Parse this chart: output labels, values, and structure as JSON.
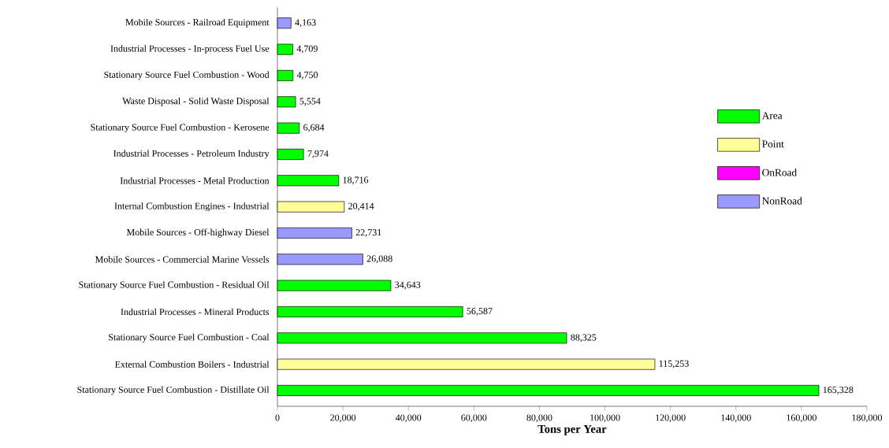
{
  "chart_data": {
    "type": "bar",
    "orientation": "horizontal",
    "xlabel": "Tons per Year",
    "categories": [
      "Mobile Sources - Railroad Equipment",
      "Industrial Processes - In-process Fuel Use",
      "Stationary Source Fuel Combustion - Wood",
      "Waste Disposal - Solid Waste Disposal",
      "Stationary Source Fuel Combustion - Kerosene",
      "Industrial Processes - Petroleum Industry",
      "Industrial Processes - Metal Production",
      "Internal Combustion Engines - Industrial",
      "Mobile Sources - Off-highway Diesel",
      "Mobile Sources - Commercial Marine Vessels",
      "Stationary Source Fuel Combustion - Residual Oil",
      "Industrial Processes - Mineral Products",
      "Stationary Source Fuel Combustion - Coal",
      "External Combustion Boilers - Industrial",
      "Stationary Source Fuel Combustion - Distillate Oil"
    ],
    "series": [
      {
        "name": "Area",
        "color": "#00ff00",
        "values": [
          null,
          4709,
          4750,
          5554,
          6684,
          7974,
          18716,
          null,
          null,
          null,
          34643,
          56587,
          88325,
          null,
          165328
        ],
        "value_labels": [
          null,
          "4,709",
          "4,750",
          "5,554",
          "6,684",
          "7,974",
          "18,716",
          null,
          null,
          null,
          "34,643",
          "56,587",
          "88,325",
          null,
          "165,328"
        ]
      },
      {
        "name": "Point",
        "color": "#ffff99",
        "values": [
          null,
          null,
          null,
          null,
          null,
          null,
          null,
          20414,
          null,
          null,
          null,
          null,
          null,
          115253,
          null
        ],
        "value_labels": [
          null,
          null,
          null,
          null,
          null,
          null,
          null,
          "20,414",
          null,
          null,
          null,
          null,
          null,
          "115,253",
          null
        ]
      },
      {
        "name": "OnRoad",
        "color": "#ff00ff",
        "values": [
          null,
          null,
          null,
          null,
          null,
          null,
          null,
          null,
          null,
          null,
          null,
          null,
          null,
          null,
          null
        ],
        "value_labels": [
          null,
          null,
          null,
          null,
          null,
          null,
          null,
          null,
          null,
          null,
          null,
          null,
          null,
          null,
          null
        ]
      },
      {
        "name": "NonRoad",
        "color": "#9999ff",
        "values": [
          4163,
          null,
          null,
          null,
          null,
          null,
          null,
          null,
          22731,
          26088,
          null,
          null,
          null,
          null,
          null
        ],
        "value_labels": [
          "4,163",
          null,
          null,
          null,
          null,
          null,
          null,
          null,
          "22,731",
          "26,088",
          null,
          null,
          null,
          null,
          null
        ]
      }
    ],
    "xlim": [
      0,
      180000
    ],
    "xticks": [
      0,
      {
        "value": 20000,
        "label": "20,000"
      },
      {
        "value": 40000,
        "label": "40,000"
      },
      {
        "value": 60000,
        "label": "60,000"
      },
      {
        "value": 80000,
        "label": "80,000"
      },
      {
        "value": 100000,
        "label": "100,000"
      },
      {
        "value": 120000,
        "label": "120,000"
      },
      {
        "value": 140000,
        "label": "140,000"
      },
      {
        "value": 160000,
        "label": "160,000"
      },
      {
        "value": 180000,
        "label": "180,000"
      }
    ],
    "legend": "right",
    "grid": false
  }
}
